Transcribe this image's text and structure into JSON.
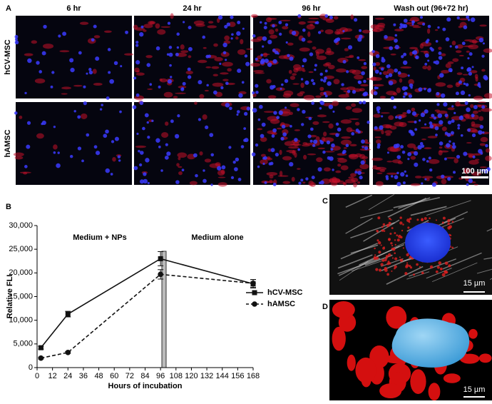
{
  "panel_a": {
    "label": "A",
    "columns": [
      "6 hr",
      "24 hr",
      "96 hr",
      "Wash out (96+72 hr)"
    ],
    "rows": [
      "hCV-MSC",
      "hAMSC"
    ],
    "scale_bar": "100 µm"
  },
  "chart_data": {
    "type": "line",
    "panel_label": "B",
    "x_label": "Hours of incubation",
    "y_label": "Relative FLI",
    "annotations": [
      "Medium + NPs",
      "Medium alone"
    ],
    "x": [
      3,
      24,
      96,
      168
    ],
    "series": [
      {
        "name": "hCV-MSC",
        "color": "#111111",
        "linestyle": "solid",
        "marker": "square",
        "values": [
          4200,
          11300,
          23000,
          17700
        ],
        "errors": [
          300,
          600,
          1500,
          900
        ]
      },
      {
        "name": "hAMSC",
        "color": "#111111",
        "linestyle": "dashed",
        "marker": "circle",
        "values": [
          2000,
          3200,
          19700,
          17800
        ],
        "errors": [
          200,
          200,
          1000,
          800
        ]
      }
    ],
    "xlim": [
      0,
      168
    ],
    "xticks": [
      0,
      12,
      24,
      36,
      48,
      60,
      72,
      84,
      96,
      108,
      120,
      132,
      144,
      156,
      168
    ],
    "ylim": [
      0,
      30000
    ],
    "yticks": [
      0,
      {
        "value": 5000,
        "label": "5,000"
      },
      {
        "value": 10000,
        "label": "10,000"
      },
      {
        "value": 15000,
        "label": "15,000"
      },
      {
        "value": 20000,
        "label": "20,000"
      },
      {
        "value": 25000,
        "label": "25,000"
      },
      {
        "value": 30000,
        "label": "30,000"
      }
    ],
    "legend": "right"
  },
  "panel_c": {
    "label": "C",
    "scale_bar": "15 µm"
  },
  "panel_d": {
    "label": "D",
    "scale_bar": "15 µm"
  }
}
